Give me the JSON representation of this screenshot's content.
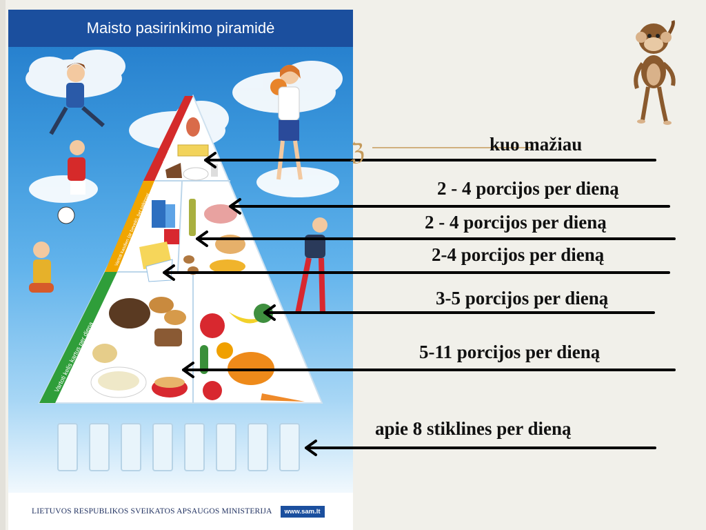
{
  "poster": {
    "title": "Maisto pasirinkimo piramidė",
    "ministry": "LIETUVOS RESPUBLIKOS SVEIKATOS APSAUGOS MINISTERIJA",
    "website": "www.sam.lt"
  },
  "pyramid_captions": {
    "top": "Vartoti kuo mažiau",
    "middle": "Vartoti kasdien (ar beveik), bet saikingai",
    "bottom": "Vartoti kelis kartus per dieną"
  },
  "labels": [
    "kuo mažiau",
    "2 - 4 porcijos per dieną",
    "2 - 4 porcijos per dieną",
    "2-4 porcijos per dieną",
    "3-5 porcijos per dieną",
    "5-11 porcijos per dieną",
    "apie 8 stiklines per dieną"
  ],
  "colors": {
    "poster_header": "#1b4f9e",
    "caption_top": "#d42a2a",
    "caption_middle": "#f0a500",
    "caption_bottom": "#2f9e3a",
    "arrow": "#000000",
    "bullet": "#c59a5a"
  },
  "icons": {
    "bullet": "feather-z-bullet-icon",
    "corner": "monkey-icon"
  }
}
